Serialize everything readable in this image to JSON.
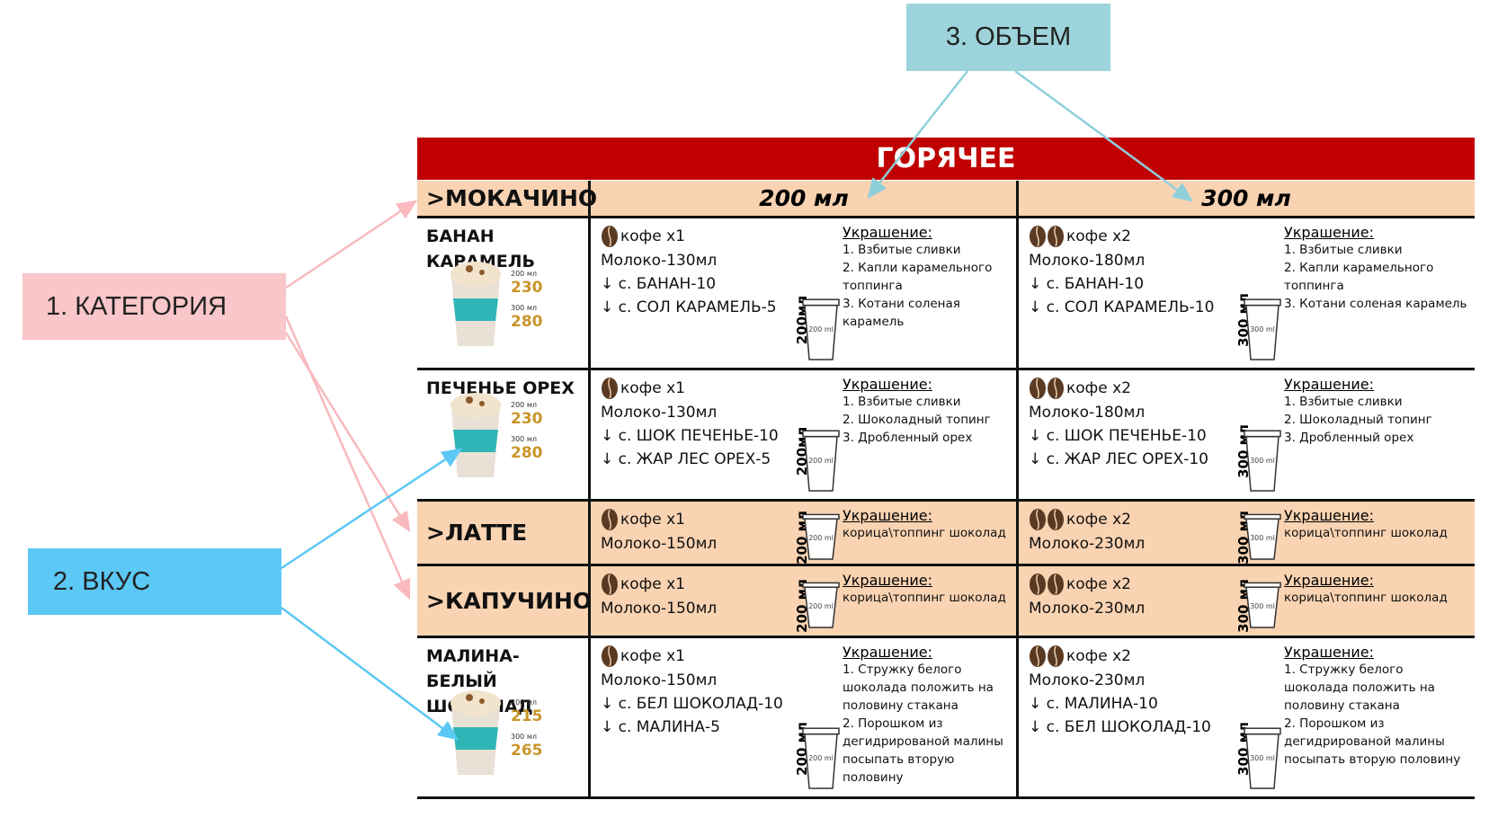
{
  "labels": {
    "category": "1. КАТЕГОРИЯ",
    "taste": "2. ВКУС",
    "volume": "3. ОБЪЕМ"
  },
  "table": {
    "title": "ГОРЯЧЕЕ",
    "sizes": [
      "200 мл",
      "300 мл"
    ],
    "rows": [
      {
        "name": ">МОКАЧИНО"
      },
      {
        "name": "БАНАН КАРАМЕЛЬ",
        "prices": [
          {
            "size": "200 мл",
            "price": "230"
          },
          {
            "size": "300 мл",
            "price": "280"
          }
        ],
        "cells": [
          {
            "coffee": "кофе х1",
            "lines": [
              "Молоко-130мл",
              "↓ с. БАНАН-10",
              "↓ с. СОЛ КАРАМЕЛЬ-5"
            ],
            "cup": {
              "side": "200мл",
              "inner": "200 ml"
            },
            "deco_title": "Украшение:",
            "deco": [
              "1. Взбитые сливки",
              "2. Капли карамельного топпинга",
              "3. Котани соленая карамель"
            ]
          },
          {
            "coffee": "кофе х2",
            "lines": [
              "Молоко-180мл",
              "↓ с. БАНАН-10",
              "↓ с. СОЛ КАРАМЕЛЬ-10"
            ],
            "cup": {
              "side": "300 мл",
              "inner": "300 ml"
            },
            "deco_title": "Украшение:",
            "deco": [
              "1. Взбитые сливки",
              "2. Капли карамельного топпинга",
              "3. Котани соленая карамель"
            ]
          }
        ]
      },
      {
        "name": "ПЕЧЕНЬЕ ОРЕХ",
        "prices": [
          {
            "size": "200 мл",
            "price": "230"
          },
          {
            "size": "300 мл",
            "price": "280"
          }
        ],
        "cells": [
          {
            "coffee": "кофе х1",
            "lines": [
              "Молоко-130мл",
              "↓ с. ШОК ПЕЧЕНЬЕ-10",
              "↓ с. ЖАР ЛЕС ОРЕХ-5"
            ],
            "cup": {
              "side": "200мл",
              "inner": "200 ml"
            },
            "deco_title": "Украшение:",
            "deco": [
              "1. Взбитые сливки",
              "2. Шоколадный топинг",
              "3. Дробленный орех"
            ]
          },
          {
            "coffee": "кофе х2",
            "lines": [
              "Молоко-180мл",
              "↓ с. ШОК ПЕЧЕНЬЕ-10",
              "↓ с. ЖАР ЛЕС ОРЕХ-10"
            ],
            "cup": {
              "side": "300 мл",
              "inner": "300 ml"
            },
            "deco_title": "Украшение:",
            "deco": [
              "1. Взбитые сливки",
              "2. Шоколадный топинг",
              "3. Дробленный орех"
            ]
          }
        ]
      },
      {
        "name": ">ЛАТТЕ",
        "cells": [
          {
            "coffee": "кофе х1",
            "lines": [
              "Молоко-150мл"
            ],
            "cup": {
              "side": "200 мл",
              "inner": "200 ml"
            },
            "deco_title": "Украшение:",
            "deco": [
              "корица\\топпинг шоколад"
            ]
          },
          {
            "coffee": "кофе х2",
            "lines": [
              "Молоко-230мл"
            ],
            "cup": {
              "side": "300 мл",
              "inner": "300 ml"
            },
            "deco_title": "Украшение:",
            "deco": [
              "корица\\топпинг шоколад"
            ]
          }
        ]
      },
      {
        "name": ">КАПУЧИНО",
        "cells": [
          {
            "coffee": "кофе х1",
            "lines": [
              "Молоко-150мл"
            ],
            "cup": {
              "side": "200 мл",
              "inner": "200 ml"
            },
            "deco_title": "Украшение:",
            "deco": [
              "корица\\топпинг шоколад"
            ]
          },
          {
            "coffee": "кофе х2",
            "lines": [
              "Молоко-230мл"
            ],
            "cup": {
              "side": "300 мл",
              "inner": "300 ml"
            },
            "deco_title": "Украшение:",
            "deco": [
              "корица\\топпинг шоколад"
            ]
          }
        ]
      },
      {
        "name": "МАЛИНА-БЕЛЫЙ ШОКОЛАД",
        "prices": [
          {
            "size": "200 мл",
            "price": "215"
          },
          {
            "size": "300 мл",
            "price": "265"
          }
        ],
        "cells": [
          {
            "coffee": "кофе х1",
            "lines": [
              "Молоко-150мл",
              "↓ с. БЕЛ ШОКОЛАД-10",
              "↓ с. МАЛИНА-5"
            ],
            "cup": {
              "side": "200 мл",
              "inner": "200 ml"
            },
            "deco_title": "Украшение:",
            "deco": [
              "1. Стружку белого шоколада положить  на половину стакана",
              "2. Порошком из дегидрированой малины посыпать вторую половину"
            ]
          },
          {
            "coffee": "кофе х2",
            "lines": [
              "Молоко-230мл",
              "↓ с. МАЛИНА-10",
              "↓ с. БЕЛ ШОКОЛАД-10"
            ],
            "cup": {
              "side": "300 мл",
              "inner": "300 ml"
            },
            "deco_title": "Украшение:",
            "deco": [
              "1. Стружку белого шоколада положить  на половину стакана",
              "2. Порошком из дегидрированой малины посыпать вторую половину"
            ]
          }
        ]
      }
    ]
  }
}
